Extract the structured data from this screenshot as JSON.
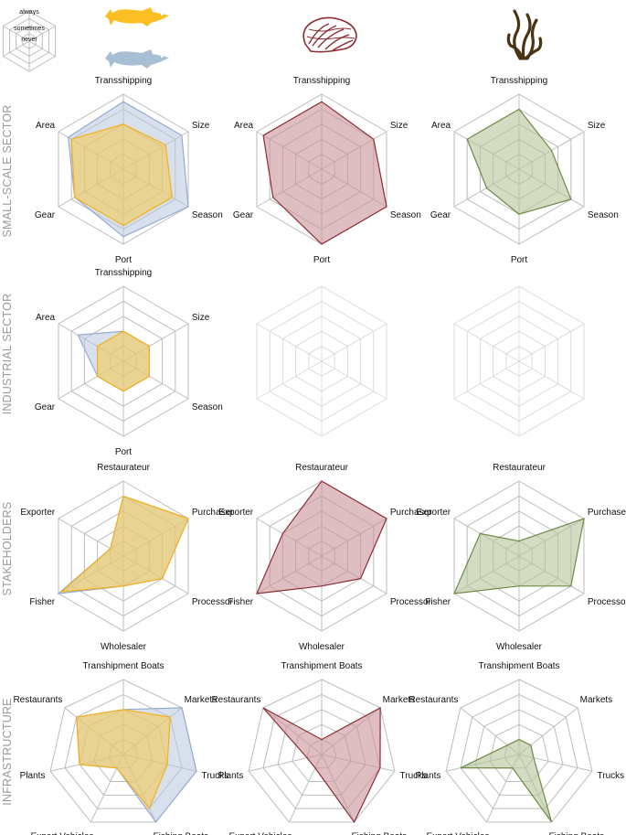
{
  "legend": {
    "levels": [
      "always",
      "sometimes",
      "never"
    ]
  },
  "species_icons": [
    {
      "name": "yellow-fish-icon",
      "color": "#FBBF24"
    },
    {
      "name": "blue-fish-icon",
      "color": "#A7BED3"
    },
    {
      "name": "shell-icon",
      "color": "#8B2D32"
    },
    {
      "name": "seaweed-icon",
      "color": "#4A3413"
    }
  ],
  "colors": {
    "yellow_fill": "#F7C948",
    "yellow_stroke": "#F2B11C",
    "blue_fill": "#B7C6DC",
    "blue_stroke": "#94ABCF",
    "red_fill": "#C99297",
    "red_stroke": "#8B2D32",
    "green_fill": "#B6C49A",
    "green_stroke": "#6E8A45",
    "grid": "#BDBDBD",
    "empty_grid": "#DCDCDC"
  },
  "chart_data": [
    {
      "row_label": "SMALL-SCALE SECTOR",
      "type": "radar",
      "axes": [
        "Transshipping",
        "Size",
        "Season",
        "Port",
        "Gear",
        "Area"
      ],
      "levels": 5,
      "rlim": [
        0,
        1
      ],
      "panels": [
        {
          "column": 1,
          "series": [
            {
              "name": "blue",
              "values": [
                0.9,
                0.9,
                1.0,
                0.9,
                0.75,
                0.85
              ]
            },
            {
              "name": "yellow",
              "values": [
                0.6,
                0.65,
                0.75,
                0.75,
                0.75,
                0.8
              ]
            }
          ]
        },
        {
          "column": 2,
          "series": [
            {
              "name": "red",
              "values": [
                0.9,
                0.8,
                1.0,
                1.0,
                0.75,
                0.9
              ]
            }
          ]
        },
        {
          "column": 3,
          "series": [
            {
              "name": "green",
              "values": [
                0.8,
                0.5,
                0.8,
                0.6,
                0.5,
                0.8
              ]
            }
          ]
        }
      ]
    },
    {
      "row_label": "INDUSTRIAL SECTOR",
      "type": "radar",
      "axes": [
        "Transshipping",
        "Size",
        "Season",
        "Port",
        "Gear",
        "Area"
      ],
      "levels": 5,
      "rlim": [
        0,
        1
      ],
      "panels": [
        {
          "column": 1,
          "series": [
            {
              "name": "blue",
              "values": [
                0.4,
                0.4,
                0.4,
                0.4,
                0.4,
                0.7
              ]
            },
            {
              "name": "yellow",
              "values": [
                0.4,
                0.4,
                0.4,
                0.4,
                0.4,
                0.4
              ]
            }
          ]
        },
        {
          "column": 2,
          "series": []
        },
        {
          "column": 3,
          "series": []
        }
      ]
    },
    {
      "row_label": "STAKEHOLDERS",
      "type": "radar",
      "axes": [
        "Restaurateur",
        "Purchaser",
        "Processor",
        "Wholesaler",
        "Fisher",
        "Exporter"
      ],
      "levels": 5,
      "rlim": [
        0,
        1
      ],
      "panels": [
        {
          "column": 1,
          "series": [
            {
              "name": "blue",
              "values": [
                0.8,
                1.0,
                0.6,
                0.4,
                1.0,
                0.2
              ]
            },
            {
              "name": "yellow",
              "values": [
                0.8,
                1.0,
                0.6,
                0.4,
                0.95,
                0.2
              ]
            }
          ]
        },
        {
          "column": 2,
          "series": [
            {
              "name": "red",
              "values": [
                1.0,
                1.0,
                0.6,
                0.4,
                1.0,
                0.6
              ]
            }
          ]
        },
        {
          "column": 3,
          "series": [
            {
              "name": "green",
              "values": [
                0.2,
                1.0,
                0.8,
                0.4,
                1.0,
                0.6
              ]
            }
          ]
        }
      ]
    },
    {
      "row_label": "INFRASTRUCTURE",
      "type": "radar",
      "axes": [
        "Transhipment Boats",
        "Markets",
        "Trucks",
        "Fishing Boats",
        "Export Vehicles",
        "Plants",
        "Restaurants"
      ],
      "levels": 5,
      "rlim": [
        0,
        1
      ],
      "panels": [
        {
          "column": 1,
          "series": [
            {
              "name": "blue",
              "values": [
                0.6,
                1.0,
                1.0,
                1.0,
                0.2,
                0.6,
                0.8
              ]
            },
            {
              "name": "yellow",
              "values": [
                0.6,
                0.8,
                0.6,
                0.8,
                0.2,
                0.6,
                0.8
              ]
            }
          ]
        },
        {
          "column": 2,
          "series": [
            {
              "name": "red",
              "values": [
                0.2,
                1.0,
                0.8,
                1.0,
                0.2,
                0.2,
                1.0
              ]
            }
          ]
        },
        {
          "column": 3,
          "series": [
            {
              "name": "green",
              "values": [
                0.2,
                0.2,
                0.2,
                1.0,
                0.2,
                0.8,
                0.2
              ]
            }
          ]
        }
      ]
    }
  ]
}
